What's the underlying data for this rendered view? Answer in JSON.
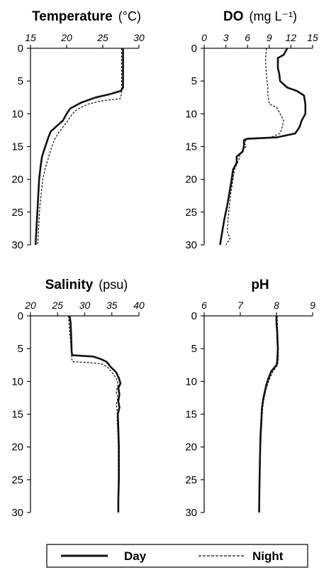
{
  "legend": {
    "day": "Day",
    "night": "Night"
  },
  "chart_data": [
    {
      "type": "line",
      "title": "Temperature",
      "unit": "(°C)",
      "xlim": [
        15,
        30
      ],
      "ylim": [
        0,
        30
      ],
      "y_inverted": true,
      "x_ticks": [
        "15",
        "20",
        "25",
        "30"
      ],
      "y_ticks": [
        "0",
        "5",
        "10",
        "15",
        "20",
        "25",
        "30"
      ],
      "series": [
        {
          "name": "Day",
          "style": "solid",
          "points": [
            [
              27.8,
              0
            ],
            [
              27.8,
              2
            ],
            [
              27.8,
              4
            ],
            [
              27.8,
              6
            ],
            [
              27.5,
              6.5
            ],
            [
              26,
              7
            ],
            [
              24,
              7.5
            ],
            [
              22,
              8.3
            ],
            [
              20.5,
              9.2
            ],
            [
              20,
              10
            ],
            [
              19.5,
              11
            ],
            [
              18.5,
              12
            ],
            [
              17.8,
              12.7
            ],
            [
              17.5,
              13.5
            ],
            [
              17.2,
              14.5
            ],
            [
              16.9,
              15.5
            ],
            [
              16.6,
              16.5
            ],
            [
              16.4,
              18
            ],
            [
              16.2,
              20
            ],
            [
              16.1,
              22
            ],
            [
              16,
              24
            ],
            [
              15.9,
              26
            ],
            [
              15.8,
              28
            ],
            [
              15.7,
              30
            ]
          ]
        },
        {
          "name": "Night",
          "style": "dashed",
          "points": [
            [
              27.6,
              0
            ],
            [
              27.6,
              2
            ],
            [
              27.6,
              4
            ],
            [
              27.6,
              6
            ],
            [
              27.6,
              7
            ],
            [
              27.4,
              7.7
            ],
            [
              25,
              8
            ],
            [
              23,
              8.5
            ],
            [
              21.5,
              9.3
            ],
            [
              20.8,
              10
            ],
            [
              20.2,
              11
            ],
            [
              19.5,
              12
            ],
            [
              18.8,
              13
            ],
            [
              18.3,
              14
            ],
            [
              17.8,
              15.5
            ],
            [
              17.4,
              17
            ],
            [
              17,
              18.5
            ],
            [
              16.7,
              20
            ],
            [
              16.5,
              22
            ],
            [
              16.3,
              24
            ],
            [
              16.2,
              26
            ],
            [
              16.1,
              28
            ],
            [
              16,
              30
            ]
          ]
        }
      ]
    },
    {
      "type": "line",
      "title": "DO",
      "unit": "(mg L⁻¹)",
      "xlim": [
        0,
        15
      ],
      "ylim": [
        0,
        30
      ],
      "y_inverted": true,
      "x_ticks": [
        "0",
        "3",
        "6",
        "9",
        "12",
        "15"
      ],
      "y_ticks": [
        "0",
        "5",
        "10",
        "15",
        "20",
        "25",
        "30"
      ],
      "series": [
        {
          "name": "Day",
          "style": "solid",
          "points": [
            [
              11.5,
              0
            ],
            [
              11,
              1
            ],
            [
              10.2,
              1.5
            ],
            [
              10.2,
              3
            ],
            [
              10.4,
              4
            ],
            [
              10.5,
              5
            ],
            [
              11.5,
              6
            ],
            [
              12.8,
              6.5
            ],
            [
              13.8,
              7.2
            ],
            [
              14,
              8.5
            ],
            [
              14,
              10
            ],
            [
              13.5,
              11
            ],
            [
              13.2,
              12
            ],
            [
              12.6,
              13
            ],
            [
              10,
              13.6
            ],
            [
              6,
              13.8
            ],
            [
              5.5,
              14
            ],
            [
              5.5,
              15
            ],
            [
              5.3,
              15.8
            ],
            [
              4.5,
              16.5
            ],
            [
              4.5,
              17.5
            ],
            [
              4,
              18.5
            ],
            [
              3.8,
              20
            ],
            [
              3.5,
              22
            ],
            [
              3.2,
              24
            ],
            [
              2.8,
              26
            ],
            [
              2.5,
              28
            ],
            [
              2.2,
              30
            ]
          ]
        },
        {
          "name": "Night",
          "style": "dashed",
          "points": [
            [
              8.6,
              0
            ],
            [
              8.5,
              2
            ],
            [
              8.6,
              4
            ],
            [
              8.8,
              6
            ],
            [
              8.8,
              7
            ],
            [
              9,
              8.5
            ],
            [
              10,
              9
            ],
            [
              10.5,
              10
            ],
            [
              11,
              11
            ],
            [
              10.8,
              12
            ],
            [
              10.5,
              13
            ],
            [
              9,
              13.7
            ],
            [
              5.8,
              13.9
            ],
            [
              5.6,
              14.5
            ],
            [
              5.8,
              15
            ],
            [
              5,
              16
            ],
            [
              4.8,
              17
            ],
            [
              4.2,
              18.5
            ],
            [
              4,
              20
            ],
            [
              3.7,
              22
            ],
            [
              3.5,
              24
            ],
            [
              3.3,
              26
            ],
            [
              3.2,
              28
            ],
            [
              3.6,
              29
            ],
            [
              3,
              30
            ]
          ]
        }
      ]
    },
    {
      "type": "line",
      "title": "Salinity",
      "unit": "(psu)",
      "xlim": [
        20,
        40
      ],
      "ylim": [
        0,
        30
      ],
      "y_inverted": true,
      "x_ticks": [
        "20",
        "25",
        "30",
        "35",
        "40"
      ],
      "y_ticks": [
        "0",
        "5",
        "10",
        "15",
        "20",
        "25",
        "30"
      ],
      "series": [
        {
          "name": "Day",
          "style": "solid",
          "points": [
            [
              27.2,
              0
            ],
            [
              27.4,
              1
            ],
            [
              27.5,
              3
            ],
            [
              27.6,
              5.5
            ],
            [
              27.7,
              6
            ],
            [
              31.5,
              6.2
            ],
            [
              33,
              6.6
            ],
            [
              34,
              7
            ],
            [
              34.8,
              7.8
            ],
            [
              35.8,
              8.6
            ],
            [
              36.3,
              9.5
            ],
            [
              36.6,
              10.3
            ],
            [
              36.2,
              11
            ],
            [
              36.4,
              12
            ],
            [
              36.2,
              13
            ],
            [
              36.4,
              14
            ],
            [
              36.1,
              15
            ],
            [
              36.2,
              17
            ],
            [
              36.3,
              20
            ],
            [
              36.3,
              22
            ],
            [
              36.3,
              25
            ],
            [
              36.2,
              28
            ],
            [
              36.2,
              30
            ]
          ]
        },
        {
          "name": "Night",
          "style": "dashed",
          "points": [
            [
              27,
              0
            ],
            [
              27.1,
              1
            ],
            [
              27.3,
              3
            ],
            [
              27.5,
              5
            ],
            [
              27.6,
              6.5
            ],
            [
              27.8,
              7
            ],
            [
              30.5,
              7.1
            ],
            [
              33,
              7.3
            ],
            [
              34.2,
              7.8
            ],
            [
              35,
              8.6
            ],
            [
              35.8,
              9.5
            ],
            [
              36.2,
              10.5
            ],
            [
              35.8,
              11.5
            ],
            [
              36.1,
              12.5
            ],
            [
              35.8,
              13.5
            ],
            [
              36,
              14.5
            ],
            [
              36,
              16
            ],
            [
              36.1,
              18
            ],
            [
              36.2,
              20
            ],
            [
              36.2,
              23
            ],
            [
              36.2,
              25
            ],
            [
              36.2,
              28
            ],
            [
              36.2,
              30
            ]
          ]
        }
      ]
    },
    {
      "type": "line",
      "title": "pH",
      "unit": "",
      "xlim": [
        6,
        9
      ],
      "ylim": [
        0,
        30
      ],
      "y_inverted": true,
      "x_ticks": [
        "6",
        "7",
        "8",
        "9"
      ],
      "y_ticks": [
        "0",
        "5",
        "10",
        "15",
        "20",
        "25",
        "30"
      ],
      "series": [
        {
          "name": "Day",
          "style": "solid",
          "points": [
            [
              8,
              0
            ],
            [
              8,
              1
            ],
            [
              8.02,
              2.5
            ],
            [
              8.03,
              4
            ],
            [
              8.04,
              5
            ],
            [
              8.03,
              6
            ],
            [
              8.02,
              7
            ],
            [
              8,
              7.5
            ],
            [
              7.85,
              8.5
            ],
            [
              7.78,
              9.5
            ],
            [
              7.72,
              10.5
            ],
            [
              7.68,
              11.5
            ],
            [
              7.64,
              12.5
            ],
            [
              7.6,
              14
            ],
            [
              7.58,
              16
            ],
            [
              7.56,
              18
            ],
            [
              7.55,
              20
            ],
            [
              7.54,
              23
            ],
            [
              7.53,
              26
            ],
            [
              7.52,
              30
            ]
          ]
        },
        {
          "name": "Night",
          "style": "dashed",
          "points": [
            [
              8.02,
              0
            ],
            [
              8.03,
              1.5
            ],
            [
              8.04,
              3
            ],
            [
              8.05,
              5
            ],
            [
              8.05,
              6.5
            ],
            [
              8.03,
              7.5
            ],
            [
              7.9,
              8.5
            ],
            [
              7.82,
              9.5
            ],
            [
              7.75,
              10.5
            ],
            [
              7.7,
              11.5
            ],
            [
              7.66,
              12.5
            ],
            [
              7.62,
              14
            ],
            [
              7.6,
              16
            ],
            [
              7.58,
              18
            ],
            [
              7.56,
              20
            ],
            [
              7.55,
              23
            ],
            [
              7.54,
              26
            ],
            [
              7.53,
              30
            ]
          ]
        }
      ]
    }
  ]
}
